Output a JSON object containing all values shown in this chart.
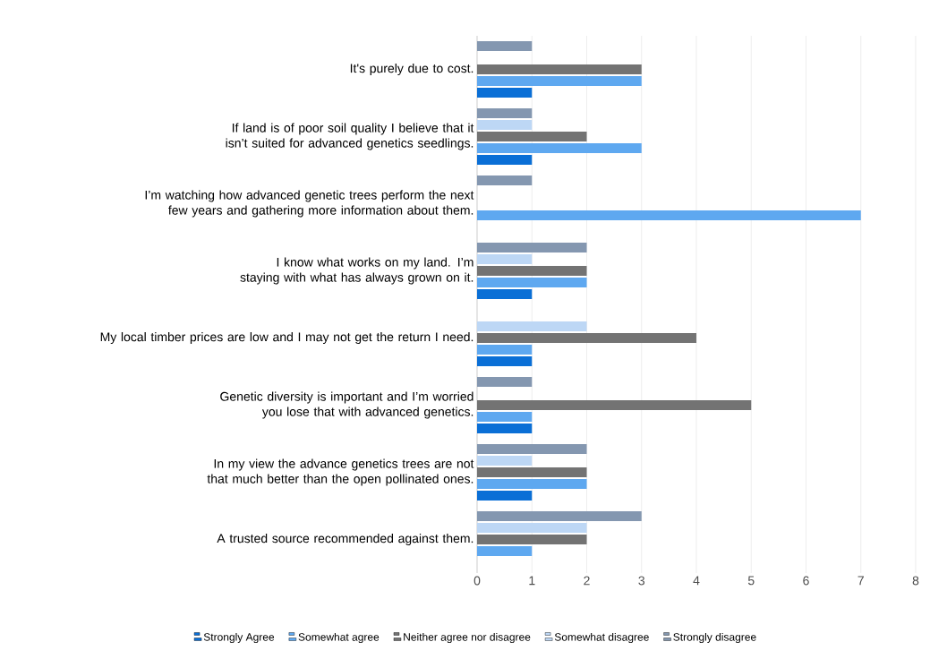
{
  "chart_data": {
    "type": "bar",
    "orientation": "horizontal",
    "categories": [
      "It's purely due to cost.",
      "If land is of poor soil quality I believe that it isn’t suited for advanced genetics seedlings.",
      "I’m watching how advanced genetic trees perform the next few years and gathering more information about them.",
      "I know what works on my land. I’m staying with what has always grown on it.",
      "My local timber prices are low and I may not get the return I need.",
      "Genetic diversity is important and I’m worried you lose that with advanced genetics.",
      "In my view the advance genetics trees are not that much better than the open pollinated ones.",
      "A trusted source recommended against them."
    ],
    "series": [
      {
        "name": "Strongly Agree",
        "color": "#0a6fd6",
        "values": [
          1,
          1,
          0,
          1,
          1,
          1,
          1,
          0
        ]
      },
      {
        "name": "Somewhat agree",
        "color": "#5ea8f0",
        "values": [
          3,
          3,
          7,
          2,
          1,
          1,
          2,
          1
        ]
      },
      {
        "name": "Neither agree nor disagree",
        "color": "#737373",
        "values": [
          3,
          2,
          0,
          2,
          4,
          5,
          2,
          2
        ]
      },
      {
        "name": "Somewhat disagree",
        "color": "#bdd7f5",
        "values": [
          0,
          1,
          0,
          1,
          2,
          0,
          1,
          2
        ]
      },
      {
        "name": "Strongly disagree",
        "color": "#8497b0",
        "values": [
          1,
          1,
          1,
          2,
          0,
          1,
          2,
          3
        ]
      }
    ],
    "xlim": [
      0,
      8
    ],
    "xticks": [
      0,
      1,
      2,
      3,
      4,
      5,
      6,
      7,
      8
    ],
    "grid": "x",
    "legend": "bottom"
  }
}
